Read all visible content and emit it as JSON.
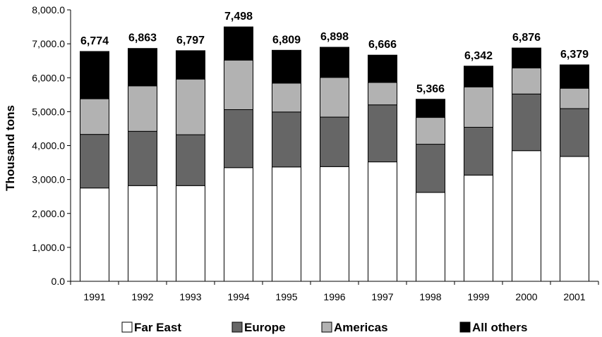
{
  "chart_data": {
    "type": "bar",
    "stacked": true,
    "ylabel": "Thousand tons",
    "xlabel": "",
    "ylim": [
      0,
      8000
    ],
    "yticks": [
      "0.0",
      "1,000.0",
      "2,000.0",
      "3,000.0",
      "4,000.0",
      "5,000.0",
      "6,000.0",
      "7,000.0",
      "8,000.0"
    ],
    "categories": [
      "1991",
      "1992",
      "1993",
      "1994",
      "1995",
      "1996",
      "1997",
      "1998",
      "1999",
      "2000",
      "2001"
    ],
    "totals": [
      "6,774",
      "6,863",
      "6,797",
      "7,498",
      "6,809",
      "6,898",
      "6,666",
      "5,366",
      "6,342",
      "6,876",
      "6,379"
    ],
    "series": [
      {
        "name": "Far East",
        "color": "#ffffff",
        "values": [
          2750,
          2820,
          2820,
          3350,
          3370,
          3380,
          3520,
          2620,
          3130,
          3850,
          3680
        ]
      },
      {
        "name": "Europe",
        "color": "#666666",
        "values": [
          1580,
          1600,
          1500,
          1710,
          1620,
          1460,
          1680,
          1420,
          1410,
          1670,
          1410
        ]
      },
      {
        "name": "Americas",
        "color": "#b2b2b2",
        "values": [
          1050,
          1340,
          1640,
          1460,
          850,
          1170,
          660,
          790,
          1190,
          770,
          600
        ]
      },
      {
        "name": "All others",
        "color": "#000000",
        "values": [
          1394,
          1103,
          837,
          978,
          969,
          888,
          806,
          536,
          612,
          586,
          689
        ]
      }
    ],
    "grid": false,
    "legend_position": "bottom"
  }
}
